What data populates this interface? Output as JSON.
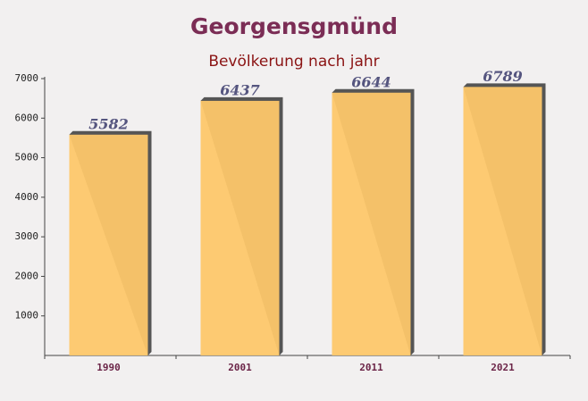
{
  "chart_data": {
    "type": "bar",
    "title": "Georgensgmünd",
    "subtitle": "Bevölkerung nach jahr",
    "categories": [
      "1990",
      "2001",
      "2011",
      "2021"
    ],
    "values": [
      5582,
      6437,
      6644,
      6789
    ],
    "color": "#fdc76a",
    "ylim": [
      0,
      7000
    ],
    "yticks": [
      1000,
      2000,
      3000,
      4000,
      5000,
      6000,
      7000
    ],
    "grid": false
  }
}
